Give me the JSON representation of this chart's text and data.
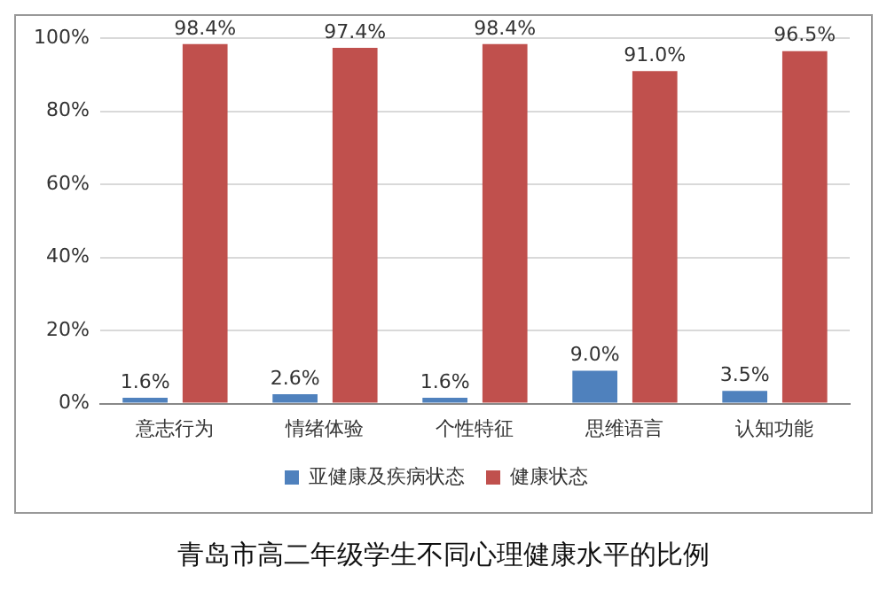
{
  "chart_data": {
    "type": "bar",
    "title": "青岛市高二年级学生不同心理健康水平的比例",
    "categories": [
      "意志行为",
      "情绪体验",
      "个性特征",
      "思维语言",
      "认知功能"
    ],
    "series": [
      {
        "name": "亚健康及疾病状态",
        "color": "#4f81bd",
        "values": [
          1.6,
          2.6,
          1.6,
          9.0,
          3.5
        ],
        "value_labels": [
          "1.6%",
          "2.6%",
          "1.6%",
          "9.0%",
          "3.5%"
        ]
      },
      {
        "name": "健康状态",
        "color": "#c0504d",
        "values": [
          98.4,
          97.4,
          98.4,
          91.0,
          96.5
        ],
        "value_labels": [
          "98.4%",
          "97.4%",
          "98.4%",
          "91.0%",
          "96.5%"
        ]
      }
    ],
    "ylim": [
      0,
      100
    ],
    "yticks": [
      {
        "value": 0,
        "label": "0%"
      },
      {
        "value": 20,
        "label": "20%"
      },
      {
        "value": 40,
        "label": "40%"
      },
      {
        "value": 60,
        "label": "60%"
      },
      {
        "value": 80,
        "label": "80%"
      },
      {
        "value": 100,
        "label": "100%"
      }
    ],
    "grid": "y",
    "legend": "bottom"
  }
}
